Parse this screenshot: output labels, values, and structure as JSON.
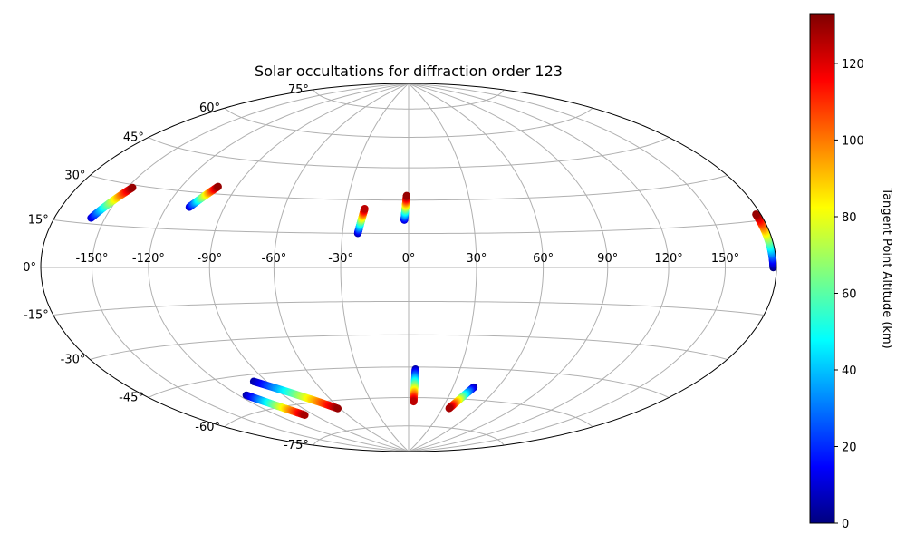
{
  "chart_data": {
    "type": "scatter",
    "projection": "hammer",
    "title": "Solar occultations for diffraction order 123",
    "grid": true,
    "xticks": [
      -150,
      -120,
      -90,
      -60,
      -30,
      0,
      30,
      60,
      90,
      120,
      150
    ],
    "xtick_labels": [
      "-150°",
      "-120°",
      "-90°",
      "-60°",
      "-30°",
      "0°",
      "30°",
      "60°",
      "90°",
      "120°",
      "150°"
    ],
    "yticks": [
      75,
      60,
      45,
      30,
      15,
      0,
      -15,
      -30,
      -45,
      -60,
      -75
    ],
    "ytick_labels": [
      "75°",
      "60°",
      "45°",
      "30°",
      "15°",
      "0°",
      "-15°",
      "-30°",
      "-45°",
      "-60°",
      "-75°"
    ],
    "colorbar": {
      "label": "Tangent Point Altitude (km)",
      "colormap": "jet",
      "vmin": 0,
      "vmax": 133,
      "ticks": [
        0,
        20,
        40,
        60,
        80,
        100,
        120
      ],
      "tick_labels": [
        "0",
        "20",
        "40",
        "60",
        "80",
        "100",
        "120"
      ]
    },
    "series": [
      {
        "lon_start": -158,
        "lat_start": 17,
        "alt_start": 10,
        "lon_end": -147,
        "lat_end": 29,
        "alt_end": 130
      },
      {
        "lon_start": -108,
        "lat_start": 24,
        "alt_start": 10,
        "lon_end": -100,
        "lat_end": 33,
        "alt_end": 130
      },
      {
        "lon_start": -23,
        "lat_start": 15,
        "alt_start": 5,
        "lon_end": -21,
        "lat_end": 26,
        "alt_end": 125
      },
      {
        "lon_start": -2,
        "lat_start": 21,
        "alt_start": 10,
        "lon_end": -1,
        "lat_end": 32,
        "alt_end": 130
      },
      {
        "lon_start": 178,
        "lat_start": 0,
        "alt_start": 0,
        "lon_end": 177,
        "lat_end": 17,
        "alt_end": 130
      },
      {
        "lon_start": 4,
        "lat_start": -46,
        "alt_start": 5,
        "lon_end": 4,
        "lat_end": -62,
        "alt_end": 125
      },
      {
        "lon_start": 44,
        "lat_start": -54,
        "alt_start": 5,
        "lon_end": 36,
        "lat_end": -65,
        "alt_end": 128
      },
      {
        "lon_start": -115,
        "lat_start": -53,
        "alt_start": 5,
        "lon_end": -98,
        "lat_end": -65,
        "alt_end": 128
      },
      {
        "lon_start": -98,
        "lat_start": -48,
        "alt_start": 5,
        "lon_end": -62,
        "lat_end": -64,
        "alt_end": 130
      }
    ]
  }
}
